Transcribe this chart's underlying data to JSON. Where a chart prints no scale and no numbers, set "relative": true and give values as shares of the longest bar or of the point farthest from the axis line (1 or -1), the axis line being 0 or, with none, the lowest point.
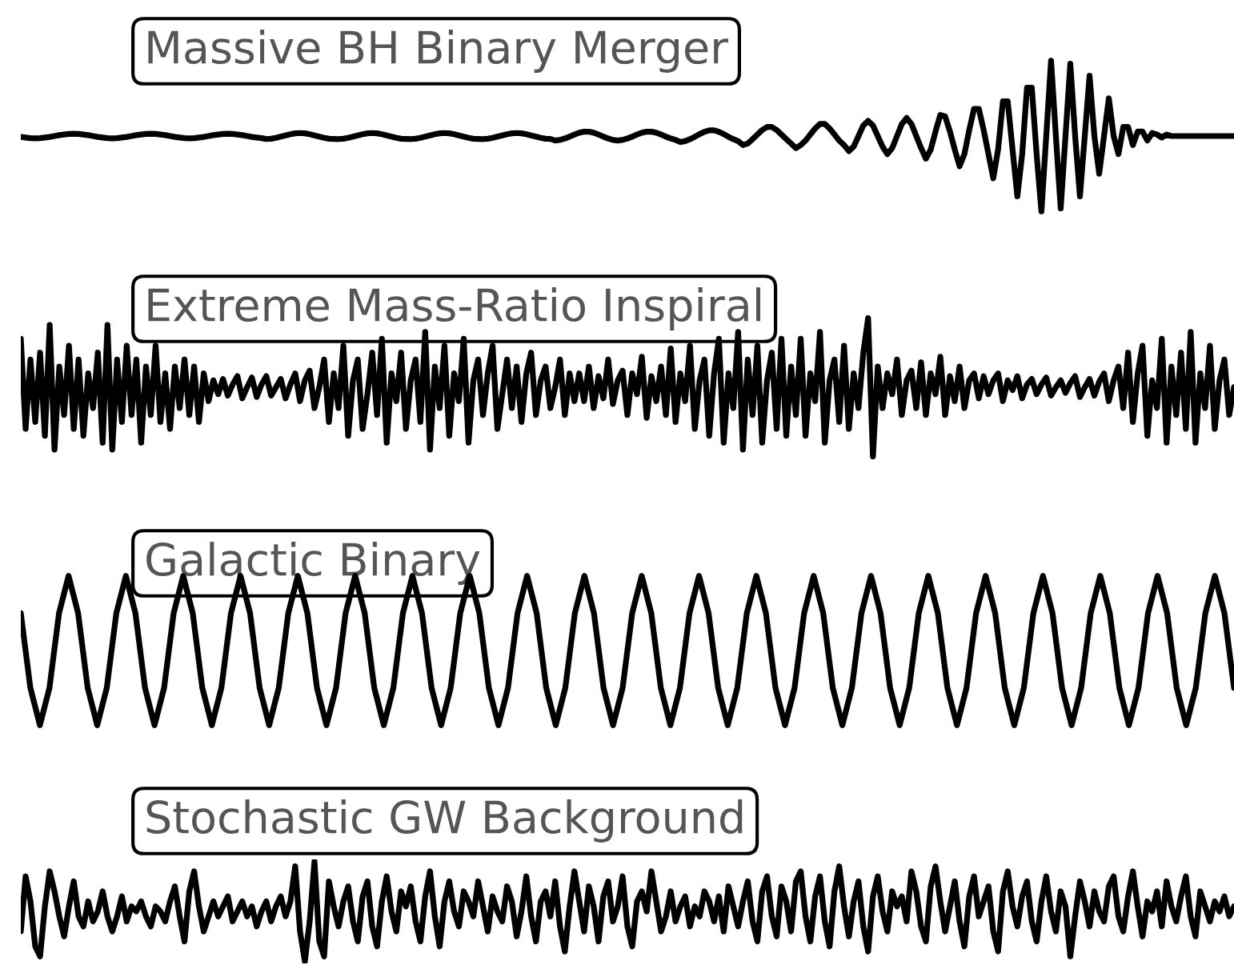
{
  "chart_data": [
    {
      "type": "line",
      "title": "Massive BH Binary Merger",
      "relative": true,
      "categories": [
        null,
        null,
        null,
        null,
        null,
        null,
        null,
        null,
        null,
        null,
        null,
        null,
        null,
        null,
        null,
        null,
        null,
        null,
        null,
        null,
        null,
        null,
        null,
        null,
        null,
        null,
        null,
        null,
        null,
        null,
        null,
        null,
        null,
        null,
        null,
        null,
        null,
        null,
        null,
        null,
        null,
        null,
        null,
        null,
        null,
        null,
        null,
        null,
        null,
        null,
        null,
        null,
        null,
        null,
        null,
        null,
        null,
        null,
        null,
        null,
        null,
        null,
        null,
        null,
        null,
        null,
        null,
        null,
        null,
        null,
        null,
        null,
        null,
        null,
        null,
        null,
        null,
        null,
        null,
        null,
        null,
        null,
        null,
        null,
        null,
        null,
        null,
        null,
        null,
        null,
        null,
        null,
        null,
        null,
        null,
        null,
        null,
        null,
        null,
        null,
        null,
        null,
        null,
        null,
        null,
        null,
        null,
        null,
        null,
        null,
        null,
        null,
        null,
        null,
        null,
        null,
        null,
        null,
        null,
        null,
        null,
        null,
        null,
        null,
        null,
        null,
        null,
        null,
        null,
        null,
        null,
        null,
        null,
        null,
        null,
        null,
        null,
        null,
        null,
        null,
        null,
        null,
        null,
        null,
        null,
        null,
        null,
        null,
        null,
        null,
        null,
        null,
        null,
        null,
        null,
        null,
        null,
        null,
        null,
        null,
        null,
        null,
        null,
        null,
        null,
        null,
        null,
        null,
        null,
        null,
        null,
        null,
        null,
        null,
        null,
        null,
        null,
        null,
        null,
        null,
        null,
        null,
        null,
        null,
        null,
        null,
        null,
        null,
        null,
        null,
        null,
        null,
        null,
        null,
        null,
        null,
        null,
        null,
        null,
        null,
        null,
        null,
        null,
        null,
        null,
        null,
        null,
        null,
        null,
        null,
        null,
        null,
        null,
        null,
        null,
        null,
        null,
        null,
        null,
        null,
        null,
        null,
        null,
        null,
        null,
        null,
        null,
        null,
        null,
        null,
        null,
        null,
        null,
        null,
        null,
        null,
        null,
        null,
        null,
        null,
        null,
        null,
        null,
        null,
        null,
        null,
        null,
        null,
        null,
        null,
        null,
        null,
        null
      ],
      "series": [
        {
          "color": "#000000",
          "values": [
            0.494,
            0.49,
            0.486,
            0.485,
            0.486,
            0.49,
            0.494,
            0.5,
            0.506,
            0.51,
            0.514,
            0.515,
            0.514,
            0.51,
            0.506,
            0.5,
            0.494,
            0.49,
            0.486,
            0.485,
            0.486,
            0.49,
            0.494,
            0.5,
            0.506,
            0.51,
            0.514,
            0.515,
            0.514,
            0.51,
            0.506,
            0.5,
            0.494,
            0.49,
            0.486,
            0.485,
            0.486,
            0.49,
            0.494,
            0.5,
            0.506,
            0.51,
            0.514,
            0.515,
            0.514,
            0.51,
            0.506,
            0.5,
            0.494,
            0.49,
            0.486,
            0.48,
            0.482,
            0.488,
            0.496,
            0.504,
            0.512,
            0.518,
            0.52,
            0.518,
            0.512,
            0.504,
            0.496,
            0.488,
            0.482,
            0.481,
            0.48,
            0.482,
            0.488,
            0.496,
            0.504,
            0.512,
            0.518,
            0.52,
            0.518,
            0.512,
            0.504,
            0.496,
            0.488,
            0.482,
            0.481,
            0.48,
            0.482,
            0.488,
            0.496,
            0.504,
            0.512,
            0.518,
            0.52,
            0.518,
            0.512,
            0.504,
            0.496,
            0.488,
            0.482,
            0.481,
            0.48,
            0.482,
            0.488,
            0.496,
            0.504,
            0.512,
            0.518,
            0.52,
            0.518,
            0.512,
            0.504,
            0.496,
            0.488,
            0.482,
            0.481,
            0.47,
            0.474,
            0.484,
            0.496,
            0.51,
            0.522,
            0.529,
            0.529,
            0.522,
            0.51,
            0.496,
            0.484,
            0.474,
            0.47,
            0.474,
            0.484,
            0.496,
            0.51,
            0.522,
            0.529,
            0.529,
            0.522,
            0.51,
            0.496,
            0.484,
            0.474,
            0.46,
            0.466,
            0.479,
            0.495,
            0.513,
            0.528,
            0.538,
            0.538,
            0.528,
            0.513,
            0.495,
            0.479,
            0.466,
            0.44,
            0.45,
            0.48,
            0.51,
            0.54,
            0.56,
            0.56,
            0.54,
            0.51,
            0.48,
            0.45,
            0.42,
            0.44,
            0.47,
            0.51,
            0.55,
            0.58,
            0.58,
            0.55,
            0.51,
            0.47,
            0.44,
            0.4,
            0.43,
            0.5,
            0.57,
            0.6,
            0.57,
            0.5,
            0.43,
            0.38,
            0.42,
            0.5,
            0.58,
            0.62,
            0.58,
            0.5,
            0.42,
            0.35,
            0.41,
            0.53,
            0.64,
            0.63,
            0.53,
            0.41,
            0.3,
            0.38,
            0.54,
            0.68,
            0.68,
            0.54,
            0.38,
            0.22,
            0.41,
            0.73,
            0.73,
            0.41,
            0.1,
            0.38,
            0.82,
            0.82,
            0.38,
            0.0,
            0.5,
            1.0,
            0.5,
            0.02,
            0.5,
            0.98,
            0.5,
            0.1,
            0.5,
            0.9,
            0.5,
            0.25,
            0.5,
            0.75,
            0.5,
            0.38,
            0.56,
            0.56,
            0.44,
            0.53,
            0.53,
            0.47,
            0.52,
            0.51,
            0.49,
            0.51,
            0.5,
            0.5,
            0.5,
            0.5,
            0.5,
            0.5,
            0.5,
            0.5,
            0.5,
            0.5,
            0.5,
            0.5,
            0.5,
            0.5
          ]
        }
      ]
    },
    {
      "type": "line",
      "title": "Extreme Mass-Ratio Inspiral",
      "relative": true,
      "categories": [
        null,
        null,
        null,
        null,
        null,
        null,
        null,
        null,
        null,
        null,
        null,
        null,
        null,
        null,
        null,
        null,
        null,
        null,
        null,
        null,
        null,
        null,
        null,
        null,
        null,
        null,
        null,
        null,
        null,
        null,
        null,
        null,
        null,
        null,
        null,
        null,
        null,
        null,
        null,
        null,
        null,
        null,
        null,
        null,
        null,
        null,
        null,
        null,
        null,
        null,
        null,
        null,
        null,
        null,
        null,
        null,
        null,
        null,
        null,
        null,
        null,
        null,
        null,
        null,
        null,
        null,
        null,
        null,
        null,
        null,
        null,
        null,
        null,
        null,
        null,
        null,
        null,
        null,
        null,
        null,
        null,
        null,
        null,
        null,
        null,
        null,
        null,
        null,
        null,
        null,
        null,
        null,
        null,
        null,
        null,
        null,
        null,
        null,
        null,
        null,
        null,
        null,
        null,
        null,
        null,
        null,
        null,
        null,
        null,
        null,
        null,
        null,
        null,
        null,
        null,
        null,
        null,
        null,
        null,
        null,
        null,
        null,
        null,
        null,
        null,
        null,
        null,
        null,
        null,
        null,
        null,
        null,
        null,
        null,
        null,
        null,
        null,
        null,
        null,
        null,
        null,
        null,
        null,
        null,
        null,
        null,
        null,
        null,
        null,
        null,
        null,
        null,
        null,
        null,
        null,
        null,
        null,
        null,
        null,
        null,
        null,
        null,
        null,
        null,
        null,
        null,
        null,
        null,
        null,
        null,
        null,
        null,
        null,
        null,
        null,
        null,
        null,
        null,
        null,
        null,
        null,
        null,
        null,
        null,
        null,
        null,
        null,
        null,
        null,
        null,
        null,
        null,
        null,
        null,
        null,
        null,
        null,
        null,
        null,
        null,
        null,
        null,
        null,
        null,
        null,
        null,
        null,
        null,
        null,
        null,
        null,
        null,
        null,
        null,
        null,
        null,
        null,
        null,
        null,
        null,
        null,
        null,
        null,
        null,
        null,
        null,
        null,
        null,
        null,
        null,
        null,
        null,
        null,
        null,
        null,
        null,
        null,
        null,
        null,
        null,
        null,
        null,
        null,
        null,
        null,
        null,
        null,
        null,
        null,
        null,
        null,
        null,
        null
      ],
      "series": [
        {
          "color": "#000000",
          "values": [
            0.85,
            0.2,
            0.7,
            0.25,
            0.75,
            0.15,
            0.95,
            0.05,
            0.65,
            0.3,
            0.8,
            0.2,
            0.7,
            0.15,
            0.6,
            0.35,
            0.75,
            0.1,
            0.95,
            0.05,
            0.7,
            0.25,
            0.8,
            0.3,
            0.7,
            0.1,
            0.65,
            0.3,
            0.8,
            0.25,
            0.6,
            0.2,
            0.65,
            0.35,
            0.7,
            0.3,
            0.65,
            0.25,
            0.6,
            0.4,
            0.55,
            0.45,
            0.56,
            0.44,
            0.52,
            0.58,
            0.42,
            0.5,
            0.57,
            0.43,
            0.52,
            0.58,
            0.44,
            0.5,
            0.56,
            0.42,
            0.52,
            0.6,
            0.4,
            0.55,
            0.62,
            0.35,
            0.5,
            0.7,
            0.25,
            0.6,
            0.35,
            0.8,
            0.15,
            0.55,
            0.7,
            0.2,
            0.45,
            0.75,
            0.3,
            0.85,
            0.1,
            0.6,
            0.4,
            0.75,
            0.2,
            0.55,
            0.7,
            0.25,
            0.9,
            0.05,
            0.65,
            0.35,
            0.8,
            0.15,
            0.6,
            0.4,
            0.85,
            0.1,
            0.55,
            0.7,
            0.3,
            0.6,
            0.8,
            0.2,
            0.45,
            0.7,
            0.35,
            0.65,
            0.25,
            0.6,
            0.75,
            0.3,
            0.55,
            0.65,
            0.35,
            0.5,
            0.7,
            0.3,
            0.6,
            0.4,
            0.6,
            0.4,
            0.65,
            0.35,
            0.58,
            0.42,
            0.7,
            0.38,
            0.55,
            0.62,
            0.3,
            0.6,
            0.45,
            0.72,
            0.28,
            0.58,
            0.4,
            0.65,
            0.3,
            0.78,
            0.25,
            0.6,
            0.4,
            0.8,
            0.2,
            0.55,
            0.7,
            0.15,
            0.6,
            0.85,
            0.1,
            0.6,
            0.35,
            0.9,
            0.05,
            0.7,
            0.3,
            0.8,
            0.1,
            0.55,
            0.75,
            0.2,
            0.85,
            0.15,
            0.65,
            0.3,
            0.85,
            0.15,
            0.6,
            0.4,
            0.9,
            0.1,
            0.55,
            0.7,
            0.25,
            0.8,
            0.2,
            0.6,
            0.35,
            0.75,
            1.0,
            0.0,
            0.65,
            0.35,
            0.6,
            0.45,
            0.7,
            0.3,
            0.55,
            0.62,
            0.35,
            0.68,
            0.3,
            0.6,
            0.45,
            0.72,
            0.3,
            0.58,
            0.4,
            0.65,
            0.35,
            0.55,
            0.6,
            0.42,
            0.58,
            0.45,
            0.55,
            0.6,
            0.4,
            0.55,
            0.48,
            0.58,
            0.42,
            0.52,
            0.56,
            0.45,
            0.52,
            0.57,
            0.44,
            0.5,
            0.55,
            0.46,
            0.53,
            0.58,
            0.43,
            0.5,
            0.56,
            0.44,
            0.54,
            0.6,
            0.4,
            0.55,
            0.65,
            0.35,
            0.75,
            0.25,
            0.6,
            0.8,
            0.15,
            0.55,
            0.35,
            0.85,
            0.1,
            0.65,
            0.3,
            0.75,
            0.2,
            0.9,
            0.1,
            0.6,
            0.35,
            0.8,
            0.2,
            0.55,
            0.7,
            0.3,
            0.5
          ]
        }
      ]
    },
    {
      "type": "line",
      "title": "Galactic Binary",
      "relative": true,
      "categories": [
        null,
        null,
        null,
        null,
        null,
        null,
        null,
        null,
        null,
        null,
        null,
        null,
        null,
        null,
        null,
        null,
        null,
        null,
        null,
        null,
        null,
        null,
        null,
        null,
        null,
        null,
        null,
        null,
        null,
        null,
        null,
        null,
        null,
        null,
        null,
        null,
        null,
        null,
        null,
        null,
        null,
        null,
        null,
        null,
        null,
        null,
        null,
        null,
        null,
        null,
        null,
        null,
        null,
        null,
        null,
        null,
        null,
        null,
        null,
        null,
        null,
        null,
        null,
        null,
        null,
        null,
        null,
        null,
        null,
        null,
        null,
        null,
        null,
        null,
        null,
        null,
        null,
        null,
        null,
        null,
        null,
        null,
        null,
        null,
        null,
        null,
        null,
        null,
        null,
        null,
        null,
        null,
        null,
        null,
        null,
        null,
        null,
        null,
        null,
        null,
        null,
        null,
        null,
        null,
        null,
        null,
        null,
        null,
        null,
        null,
        null,
        null,
        null,
        null,
        null,
        null,
        null,
        null,
        null,
        null,
        null,
        null,
        null,
        null,
        null,
        null,
        null,
        null
      ],
      "series": [
        {
          "color": "#000000",
          "values": [
            0.75,
            0.25,
            0,
            0.25,
            0.75,
            1,
            0.75,
            0.25,
            0,
            0.25,
            0.75,
            1,
            0.75,
            0.25,
            0,
            0.25,
            0.75,
            1,
            0.75,
            0.25,
            0,
            0.25,
            0.75,
            1,
            0.75,
            0.25,
            0,
            0.25,
            0.75,
            1,
            0.75,
            0.25,
            0,
            0.25,
            0.75,
            1,
            0.75,
            0.25,
            0,
            0.25,
            0.75,
            1,
            0.75,
            0.25,
            0,
            0.25,
            0.75,
            1,
            0.75,
            0.25,
            0,
            0.25,
            0.75,
            1,
            0.75,
            0.25,
            0,
            0.25,
            0.75,
            1,
            0.75,
            0.25,
            0,
            0.25,
            0.75,
            1,
            0.75,
            0.25,
            0,
            0.25,
            0.75,
            1,
            0.75,
            0.25,
            0,
            0.25,
            0.75,
            1,
            0.75,
            0.25,
            0,
            0.25,
            0.75,
            1,
            0.75,
            0.25,
            0,
            0.25,
            0.75,
            1,
            0.75,
            0.25,
            0,
            0.25,
            0.75,
            1,
            0.75,
            0.25,
            0,
            0.25,
            0.75,
            1,
            0.75,
            0.25,
            0,
            0.25,
            0.75,
            1,
            0.75,
            0.25,
            0,
            0.25,
            0.75,
            1,
            0.75,
            0.25,
            0,
            0.25,
            0.75,
            1,
            0.75,
            0.25,
            0,
            0.25,
            0.75,
            1,
            0.75,
            0.25
          ]
        }
      ]
    },
    {
      "type": "line",
      "title": "Stochastic GW Background",
      "relative": true,
      "categories": [
        null,
        null,
        null,
        null,
        null,
        null,
        null,
        null,
        null,
        null,
        null,
        null,
        null,
        null,
        null,
        null,
        null,
        null,
        null,
        null,
        null,
        null,
        null,
        null,
        null,
        null,
        null,
        null,
        null,
        null,
        null,
        null,
        null,
        null,
        null,
        null,
        null,
        null,
        null,
        null,
        null,
        null,
        null,
        null,
        null,
        null,
        null,
        null,
        null,
        null,
        null,
        null,
        null,
        null,
        null,
        null,
        null,
        null,
        null,
        null,
        null,
        null,
        null,
        null,
        null,
        null,
        null,
        null,
        null,
        null,
        null,
        null,
        null,
        null,
        null,
        null,
        null,
        null,
        null,
        null,
        null,
        null,
        null,
        null,
        null,
        null,
        null,
        null,
        null,
        null,
        null,
        null,
        null,
        null,
        null,
        null,
        null,
        null,
        null,
        null,
        null,
        null,
        null,
        null,
        null,
        null,
        null,
        null,
        null,
        null,
        null,
        null,
        null,
        null,
        null,
        null,
        null,
        null,
        null,
        null,
        null,
        null,
        null,
        null,
        null,
        null,
        null,
        null,
        null,
        null,
        null,
        null,
        null,
        null,
        null,
        null,
        null,
        null,
        null,
        null,
        null,
        null,
        null,
        null,
        null,
        null,
        null,
        null,
        null,
        null,
        null,
        null,
        null,
        null,
        null,
        null,
        null,
        null,
        null,
        null,
        null,
        null,
        null,
        null,
        null,
        null,
        null,
        null,
        null,
        null,
        null,
        null,
        null,
        null,
        null,
        null,
        null,
        null,
        null,
        null,
        null,
        null,
        null,
        null,
        null,
        null,
        null,
        null,
        null,
        null,
        null,
        null,
        null,
        null,
        null,
        null,
        null,
        null,
        null,
        null,
        null,
        null,
        null,
        null,
        null,
        null,
        null,
        null,
        null,
        null,
        null,
        null,
        null,
        null,
        null,
        null,
        null,
        null,
        null,
        null,
        null,
        null,
        null,
        null,
        null,
        null,
        null,
        null,
        null,
        null,
        null,
        null,
        null,
        null,
        null,
        null,
        null,
        null,
        null,
        null,
        null,
        null,
        null,
        null,
        null,
        null,
        null,
        null,
        null,
        null,
        null,
        null,
        null
      ],
      "series": [
        {
          "color": "#000000",
          "values": [
            0.3,
            0.85,
            0.6,
            0.15,
            0.05,
            0.55,
            0.9,
            0.7,
            0.45,
            0.25,
            0.55,
            0.8,
            0.45,
            0.35,
            0.6,
            0.4,
            0.5,
            0.7,
            0.45,
            0.3,
            0.45,
            0.65,
            0.4,
            0.55,
            0.5,
            0.6,
            0.45,
            0.35,
            0.55,
            0.5,
            0.4,
            0.6,
            0.75,
            0.45,
            0.2,
            0.7,
            0.9,
            0.55,
            0.3,
            0.45,
            0.6,
            0.45,
            0.55,
            0.65,
            0.4,
            0.5,
            0.6,
            0.45,
            0.55,
            0.35,
            0.5,
            0.6,
            0.4,
            0.55,
            0.65,
            0.45,
            0.6,
            0.95,
            0.3,
            0.0,
            0.4,
            1.0,
            0.2,
            0.05,
            0.8,
            0.55,
            0.35,
            0.6,
            0.75,
            0.4,
            0.2,
            0.65,
            0.8,
            0.35,
            0.15,
            0.6,
            0.85,
            0.5,
            0.3,
            0.7,
            0.55,
            0.75,
            0.4,
            0.2,
            0.65,
            0.9,
            0.45,
            0.15,
            0.6,
            0.8,
            0.5,
            0.35,
            0.7,
            0.6,
            0.45,
            0.8,
            0.55,
            0.3,
            0.65,
            0.5,
            0.4,
            0.75,
            0.6,
            0.25,
            0.5,
            0.85,
            0.45,
            0.2,
            0.6,
            0.7,
            0.45,
            0.8,
            0.35,
            0.1,
            0.55,
            0.9,
            0.6,
            0.3,
            0.75,
            0.55,
            0.2,
            0.65,
            0.8,
            0.4,
            0.55,
            0.85,
            0.35,
            0.15,
            0.6,
            0.7,
            0.5,
            0.9,
            0.6,
            0.3,
            0.45,
            0.7,
            0.4,
            0.55,
            0.65,
            0.35,
            0.55,
            0.45,
            0.7,
            0.6,
            0.4,
            0.65,
            0.3,
            0.75,
            0.55,
            0.35,
            0.6,
            0.8,
            0.4,
            0.2,
            0.7,
            0.85,
            0.45,
            0.25,
            0.75,
            0.6,
            0.3,
            0.8,
            0.9,
            0.45,
            0.2,
            0.65,
            0.85,
            0.4,
            0.15,
            0.7,
            0.95,
            0.55,
            0.25,
            0.6,
            0.8,
            0.35,
            0.1,
            0.65,
            0.85,
            0.5,
            0.3,
            0.7,
            0.55,
            0.65,
            0.4,
            0.9,
            0.7,
            0.35,
            0.2,
            0.75,
            0.95,
            0.6,
            0.3,
            0.55,
            0.8,
            0.4,
            0.15,
            0.65,
            0.85,
            0.45,
            0.6,
            0.75,
            0.3,
            0.1,
            0.7,
            0.9,
            0.55,
            0.35,
            0.65,
            0.8,
            0.4,
            0.2,
            0.6,
            0.85,
            0.5,
            0.3,
            0.7,
            0.55,
            0.05,
            0.45,
            0.8,
            0.6,
            0.35,
            0.7,
            0.5,
            0.4,
            0.75,
            0.85,
            0.45,
            0.3,
            0.65,
            0.9,
            0.55,
            0.25,
            0.6,
            0.5,
            0.7,
            0.35,
            0.8,
            0.55,
            0.4,
            0.65,
            0.85,
            0.45,
            0.25,
            0.7,
            0.55,
            0.4,
            0.6,
            0.5,
            0.65,
            0.45,
            0.55
          ]
        }
      ]
    }
  ]
}
